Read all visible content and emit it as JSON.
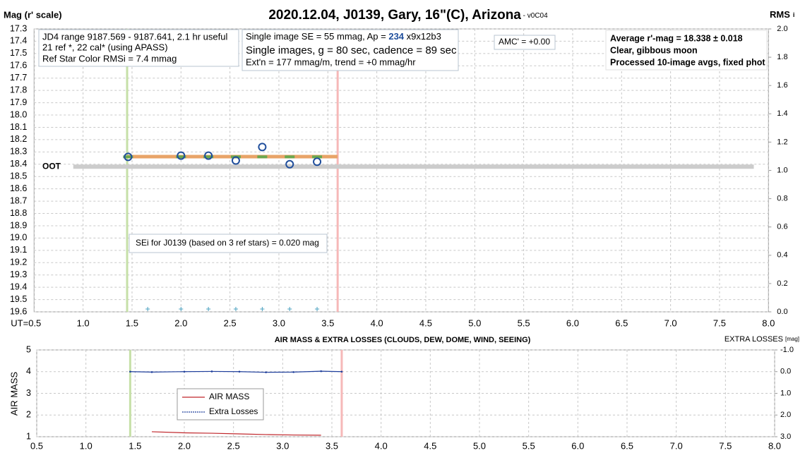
{
  "chart_data": [
    {
      "type": "line",
      "title": "2020.12.04, J0139, Gary, 16\"(C), Arizona",
      "subtitle": " - v0C04",
      "ylabel": "Mag (r' scale)",
      "y2label": "RMS",
      "y2label_sub": "i",
      "xlim": [
        0.5,
        8.0
      ],
      "xticks": [
        {
          "value": 0.5,
          "label": "UT=0.5"
        },
        {
          "value": 1.0,
          "label": "1.0"
        },
        1.5,
        {
          "value": 2.0,
          "label": "2.0"
        },
        2.5,
        {
          "value": 3.0,
          "label": "3.0"
        },
        3.5,
        {
          "value": 4.0,
          "label": "4.0"
        },
        4.5,
        {
          "value": 5.0,
          "label": "5.0"
        },
        5.5,
        {
          "value": 6.0,
          "label": "6.0"
        },
        6.5,
        {
          "value": 7.0,
          "label": "7.0"
        },
        7.5,
        {
          "value": 8.0,
          "label": "8.0"
        }
      ],
      "ylim": [
        19.6,
        17.3
      ],
      "yticks": [
        17.3,
        17.4,
        17.5,
        17.6,
        17.7,
        17.8,
        17.9,
        {
          "value": 18.0,
          "label": "18.0"
        },
        18.1,
        18.2,
        18.3,
        18.4,
        18.5,
        18.6,
        18.7,
        18.8,
        18.9,
        {
          "value": 19.0,
          "label": "19.0"
        },
        19.1,
        19.2,
        19.3,
        19.4,
        19.5,
        19.6
      ],
      "y2lim": [
        0.0,
        2.0
      ],
      "y2ticks": [
        {
          "value": 0.0,
          "label": "0.0"
        },
        0.2,
        0.4,
        0.6,
        0.8,
        {
          "value": 1.0,
          "label": "1.0"
        },
        1.2,
        1.4,
        1.6,
        1.8,
        {
          "value": 2.0,
          "label": "2.0"
        }
      ],
      "grid": true,
      "vlines": [
        {
          "x": 1.45,
          "color": "#c6e0a8"
        },
        {
          "x": 3.6,
          "color": "#f6b8b8"
        }
      ],
      "series": [
        {
          "name": "OOT",
          "color": "#cccccc",
          "marker": "none",
          "width": 6,
          "x": [
            0.9,
            7.85
          ],
          "values": [
            18.42,
            18.42
          ]
        },
        {
          "color": "#e8a468",
          "marker": "none",
          "width": 5,
          "x": [
            1.45,
            3.6
          ],
          "values": [
            18.338,
            18.338
          ]
        },
        {
          "color": "#6aa84f",
          "marker": "dash",
          "x": [
            1.46,
            2.0,
            2.28,
            2.56,
            2.83,
            3.11,
            3.39
          ],
          "values": [
            18.34,
            18.34,
            18.34,
            18.34,
            18.34,
            18.34,
            18.34
          ]
        },
        {
          "color": "#1f4e9c",
          "marker": "circle",
          "x": [
            1.46,
            2.0,
            2.28,
            2.56,
            2.83,
            3.11,
            3.39
          ],
          "values": [
            18.34,
            18.33,
            18.33,
            18.37,
            18.26,
            18.4,
            18.38
          ]
        },
        {
          "color": "#4aa0c0",
          "marker": "plus",
          "axis": "y2",
          "x": [
            1.66,
            2.0,
            2.28,
            2.56,
            2.83,
            3.11,
            3.39
          ],
          "values": [
            0.02,
            0.02,
            0.02,
            0.02,
            0.02,
            0.02,
            0.02
          ]
        }
      ],
      "annotations": [
        [
          "JD4 range 9187.569 - 9187.641, 2.1 hr useful",
          " 21 ref *, 22 cal* (using APASS)",
          "Ref Star Color RMSi = 7.4 mmag"
        ],
        [
          "Single image SE = 55 mmag, Ap = ",
          "234",
          " x9x12b3",
          "Single images, g = 80 sec, cadence = 89 sec",
          "Ext'n = 177 mmag/m, trend = +0 mmag/hr"
        ],
        [
          "AMC' = +0.00"
        ],
        [
          "Average r'-mag =  18.338 ± 0.018",
          "Clear, gibbous moon",
          "Processed 10-image avgs, fixed phot"
        ],
        [
          "SEi for J0139 (based on 3 ref stars) = 0.020 mag"
        ]
      ]
    },
    {
      "type": "line",
      "title": "AIR MASS & EXTRA LOSSES (CLOUDS, DEW, DOME, WIND, SEEING)",
      "ylabel": "AIR MASS",
      "y2label": "EXTRA LOSSES",
      "y2label_sub": "[mag]",
      "xlim": [
        0.5,
        8.0
      ],
      "xticks": [
        0.5,
        {
          "value": 1.0,
          "label": "1.0"
        },
        1.5,
        {
          "value": 2.0,
          "label": "2.0"
        },
        2.5,
        {
          "value": 3.0,
          "label": "3.0"
        },
        3.5,
        {
          "value": 4.0,
          "label": "4.0"
        },
        4.5,
        {
          "value": 5.0,
          "label": "5.0"
        },
        5.5,
        {
          "value": 6.0,
          "label": "6.0"
        },
        6.5,
        {
          "value": 7.0,
          "label": "7.0"
        },
        7.5,
        {
          "value": 8.0,
          "label": "8.0"
        }
      ],
      "ylim": [
        1,
        5
      ],
      "yticks": [
        1,
        2,
        3,
        4,
        5
      ],
      "y2lim": [
        3.0,
        -1.0
      ],
      "y2ticks": [
        {
          "value": 3.0,
          "label": "3.0"
        },
        {
          "value": 2.0,
          "label": "2.0"
        },
        {
          "value": 1.0,
          "label": "1.0"
        },
        {
          "value": 0.0,
          "label": "0.0"
        },
        {
          "value": -1.0,
          "label": "-1.0"
        }
      ],
      "grid": true,
      "vlines": [
        {
          "x": 1.45,
          "color": "#c6e0a8"
        },
        {
          "x": 3.6,
          "color": "#f6b8b8"
        }
      ],
      "series": [
        {
          "name": "AIR MASS",
          "color": "#c0262b",
          "marker": "none",
          "width": 1.2,
          "x": [
            1.67,
            2.0,
            2.28,
            2.56,
            2.83,
            3.11,
            3.39
          ],
          "values": [
            1.23,
            1.18,
            1.16,
            1.13,
            1.1,
            1.08,
            1.07
          ]
        },
        {
          "name": "Extra Losses",
          "color": "#1f3f9c",
          "marker": "dot",
          "width": 1.2,
          "axis": "y2",
          "x": [
            1.45,
            1.67,
            2.0,
            2.28,
            2.56,
            2.83,
            3.11,
            3.39,
            3.6
          ],
          "values": [
            0.0,
            0.02,
            0.0,
            -0.01,
            0.0,
            0.03,
            0.02,
            -0.02,
            0.0
          ]
        }
      ]
    }
  ]
}
